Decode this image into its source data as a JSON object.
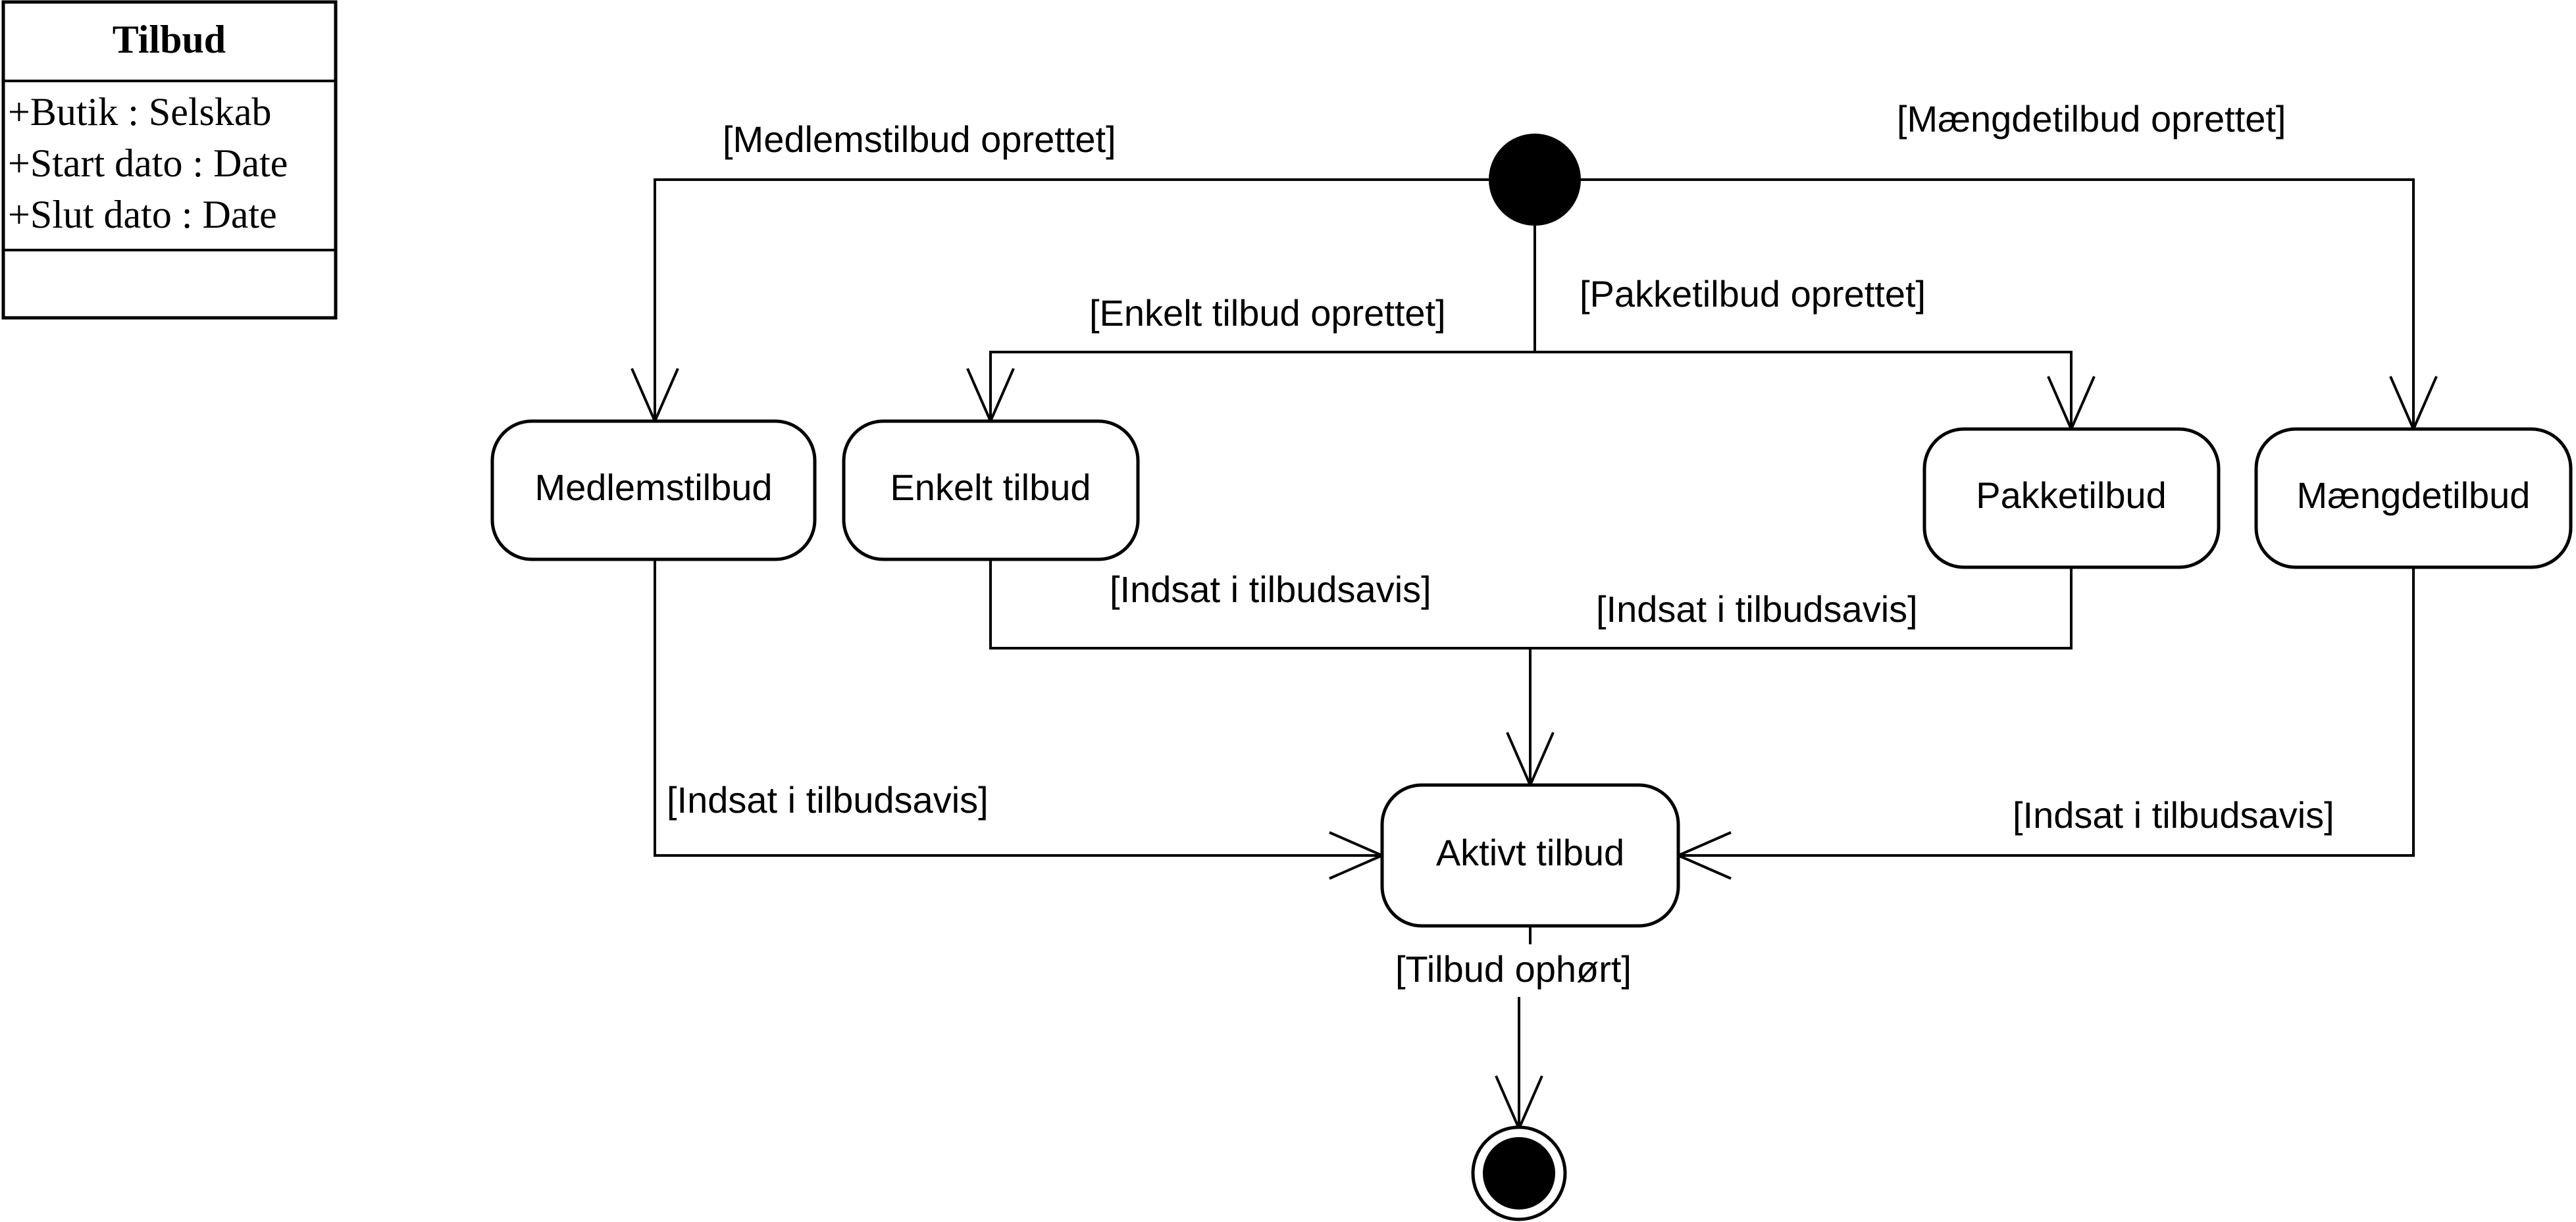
{
  "class_box": {
    "name": "Tilbud",
    "attributes": [
      "+Butik : Selskab",
      "+Start dato : Date",
      "+Slut dato : Date"
    ]
  },
  "states": {
    "medlemstilbud": "Medlemstilbud",
    "enkelt_tilbud": "Enkelt tilbud",
    "pakketilbud": "Pakketilbud",
    "maengdetilbud": "Mængdetilbud",
    "aktivt_tilbud": "Aktivt tilbud"
  },
  "guards": {
    "medlemstilbud_oprettet": "[Medlemstilbud oprettet]",
    "maengdetilbud_oprettet": "[Mængdetilbud oprettet]",
    "enkelt_tilbud_oprettet": "[Enkelt tilbud oprettet]",
    "pakketilbud_oprettet": "[Pakketilbud oprettet]",
    "enkelt_indsat": "[Indsat i tilbudsavis]",
    "pakke_indsat": "[Indsat i tilbudsavis]",
    "medlems_indsat": "[Indsat i tilbudsavis]",
    "maengde_indsat": "[Indsat i tilbudsavis]",
    "tilbud_ophoert": "[Tilbud ophørt]"
  }
}
